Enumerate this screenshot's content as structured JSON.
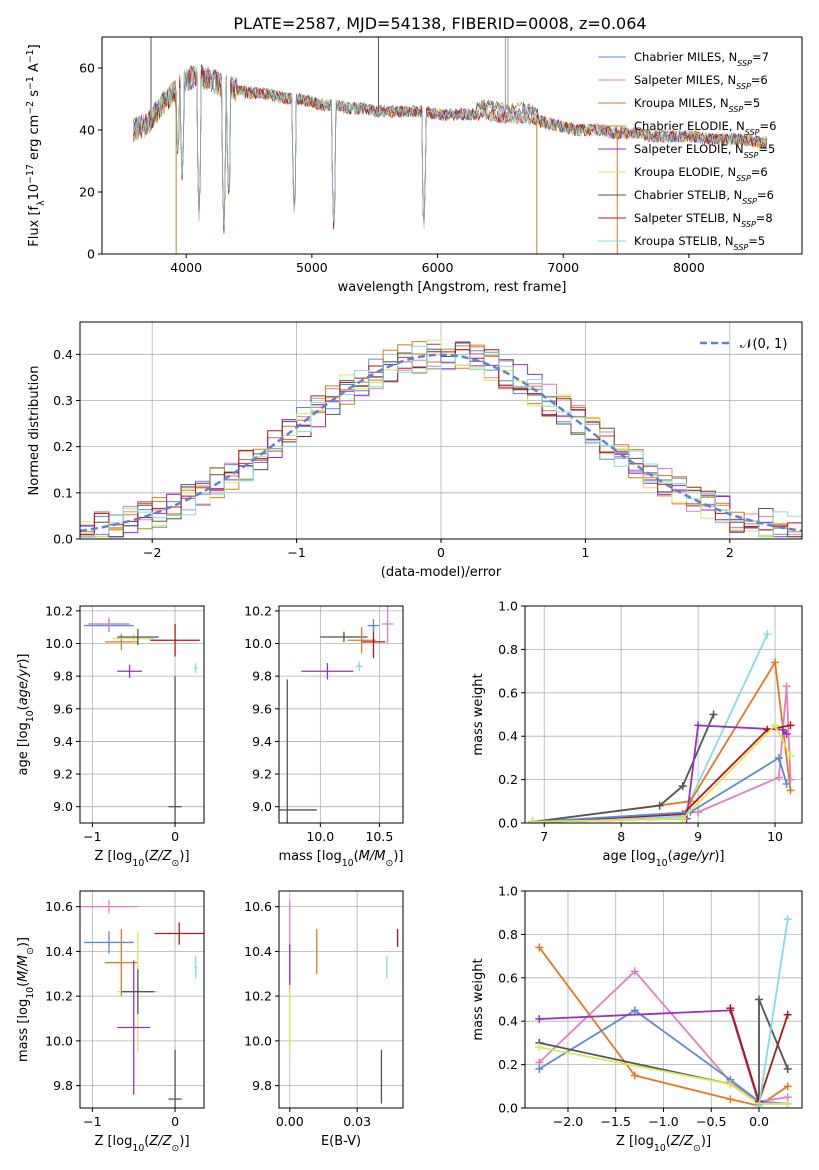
{
  "figure_title": "PLATE=2587, MJD=54138, FIBERID=0008, z=0.064",
  "palette": {
    "Chabrier MILES": "#5b8bd8",
    "Salpeter MILES": "#e27fc0",
    "Kroupa MILES": "#b9891d",
    "Chabrier ELODIE": "#e07a22",
    "Salpeter ELODIE": "#9b30c0",
    "Kroupa ELODIE": "#d6ea57",
    "Chabrier STELIB": "#555555",
    "Salpeter STELIB": "#b01818",
    "Kroupa STELIB": "#86dbe4"
  },
  "chart_data": [
    {
      "id": "spectrum",
      "type": "line",
      "title": "PLATE=2587, MJD=54138, FIBERID=0008, z=0.064",
      "xlabel": "wavelength [Angstrom, rest frame]",
      "ylabel": "Flux [f_λ 10^-17 erg cm^-2 s^-1 A^-1]",
      "xlim": [
        3330,
        8900
      ],
      "ylim": [
        0,
        70
      ],
      "xticks": [
        4000,
        5000,
        6000,
        7000,
        8000
      ],
      "yticks": [
        0,
        20,
        40,
        60
      ],
      "grid": false,
      "legend_position": "right",
      "legend": [
        {
          "label": "Chabrier MILES, N_SSP=7",
          "color": "#5b8bd8"
        },
        {
          "label": "Salpeter MILES, N_SSP=6",
          "color": "#e27fc0"
        },
        {
          "label": "Kroupa MILES, N_SSP=5",
          "color": "#b9891d"
        },
        {
          "label": "Chabrier ELODIE, N_SSP=6",
          "color": "#e07a22"
        },
        {
          "label": "Salpeter ELODIE, N_SSP=5",
          "color": "#9b30c0"
        },
        {
          "label": "Kroupa ELODIE, N_SSP=6",
          "color": "#d6ea57"
        },
        {
          "label": "Chabrier STELIB, N_SSP=6",
          "color": "#555555"
        },
        {
          "label": "Salpeter STELIB, N_SSP=8",
          "color": "#b01818"
        },
        {
          "label": "Kroupa STELIB, N_SSP=5",
          "color": "#86dbe4"
        }
      ],
      "continuum": [
        [
          3580,
          40
        ],
        [
          3700,
          42
        ],
        [
          3800,
          48
        ],
        [
          3900,
          52
        ],
        [
          4000,
          56
        ],
        [
          4100,
          58
        ],
        [
          4200,
          56
        ],
        [
          4300,
          54
        ],
        [
          4400,
          53
        ],
        [
          4500,
          52
        ],
        [
          4600,
          52
        ],
        [
          4700,
          51
        ],
        [
          4800,
          50
        ],
        [
          4900,
          50
        ],
        [
          5000,
          49
        ],
        [
          5100,
          48
        ],
        [
          5200,
          48
        ],
        [
          5300,
          47
        ],
        [
          5400,
          47
        ],
        [
          5500,
          46
        ],
        [
          5600,
          46
        ],
        [
          5700,
          46
        ],
        [
          5800,
          46
        ],
        [
          5900,
          46
        ],
        [
          6000,
          45
        ],
        [
          6100,
          45
        ],
        [
          6200,
          45
        ],
        [
          6300,
          45
        ],
        [
          6400,
          45
        ],
        [
          6500,
          44
        ],
        [
          6600,
          44
        ],
        [
          6700,
          44
        ],
        [
          6800,
          43
        ],
        [
          6900,
          42
        ],
        [
          7000,
          41
        ],
        [
          7100,
          40
        ],
        [
          7200,
          40
        ],
        [
          7300,
          40
        ],
        [
          7400,
          39
        ],
        [
          7500,
          39
        ],
        [
          7600,
          39
        ],
        [
          7700,
          38
        ],
        [
          7800,
          38
        ],
        [
          7900,
          38
        ],
        [
          8000,
          38
        ],
        [
          8200,
          37
        ],
        [
          8400,
          37
        ],
        [
          8600,
          36
        ]
      ],
      "absorption_lines": [
        [
          3934,
          28
        ],
        [
          3969,
          22
        ],
        [
          4102,
          12
        ],
        [
          4300,
          8
        ],
        [
          4340,
          14
        ],
        [
          4861,
          10
        ],
        [
          5175,
          6
        ],
        [
          5890,
          5
        ]
      ],
      "spikes": [
        [
          3920,
          0,
          "#b9891d"
        ],
        [
          6790,
          0,
          "#b9891d"
        ],
        [
          7430,
          0,
          "#e07a22"
        ],
        [
          5530,
          70,
          "#555555"
        ],
        [
          6540,
          70,
          "#999999"
        ],
        [
          6560,
          70,
          "#999999"
        ],
        [
          3720,
          70,
          "#555555"
        ]
      ]
    },
    {
      "id": "residuals",
      "type": "histogram",
      "xlabel": "(data-model)/error",
      "ylabel": "Normed distribution",
      "xlim": [
        -2.5,
        2.5
      ],
      "ylim": [
        0,
        0.47
      ],
      "xticks": [
        -2,
        -1,
        0,
        1,
        2
      ],
      "yticks": [
        0.0,
        0.1,
        0.2,
        0.3,
        0.4
      ],
      "grid": true,
      "legend": [
        {
          "label": "𝒩(0, 1)",
          "color": "#6080d0",
          "style": "dashed"
        }
      ],
      "legend_position": "top-right",
      "bin_width": 0.1,
      "bin_start": -2.5
    },
    {
      "id": "age-vs-Z",
      "type": "errorbar",
      "xlabel": "Z [log10(Z/Z⊙)]",
      "ylabel": "age [log10(age/yr)]",
      "xlim": [
        -1.15,
        0.35
      ],
      "ylim": [
        8.9,
        10.23
      ],
      "xticks": [
        -1,
        0
      ],
      "yticks": [
        9.0,
        9.2,
        9.4,
        9.6,
        9.8,
        10.0,
        10.2
      ],
      "grid": true,
      "points": [
        {
          "color": "#5b8bd8",
          "x": -0.8,
          "y": 10.11,
          "xerr": 0.3,
          "yerr": 0.04
        },
        {
          "color": "#e27fc0",
          "x": -0.8,
          "y": 10.12,
          "xerr": 0.25,
          "yerr": 0.04
        },
        {
          "color": "#e07a22",
          "x": -0.65,
          "y": 10.01,
          "xerr": 0.2,
          "yerr": 0.05
        },
        {
          "color": "#9b30c0",
          "x": -0.55,
          "y": 9.83,
          "xerr": 0.15,
          "yerr": 0.04
        },
        {
          "color": "#d6ea57",
          "x": -0.5,
          "y": 10.03,
          "xerr": 0.25,
          "yerr": 0.03
        },
        {
          "color": "#555555",
          "x": -0.45,
          "y": 10.04,
          "xerr": 0.25,
          "yerr": 0.05
        },
        {
          "color": "#b01818",
          "x": 0.0,
          "y": 10.02,
          "xerr": 0.3,
          "yerr": 0.1
        },
        {
          "color": "#86dbe4",
          "x": 0.25,
          "y": 9.85,
          "xerr": 0.02,
          "yerr": 0.03
        },
        {
          "color": "#555555",
          "x": 0.0,
          "y": 9.0,
          "xerr": 0.08,
          "yerr": 0.8
        }
      ]
    },
    {
      "id": "age-vs-mass",
      "type": "errorbar",
      "xlabel": "mass [log10(M/M⊙)]",
      "ylabel": "",
      "xlim": [
        9.65,
        10.7
      ],
      "ylim": [
        8.9,
        10.23
      ],
      "xticks": [
        10.0,
        10.5
      ],
      "yticks": [
        9.0,
        9.2,
        9.4,
        9.6,
        9.8,
        10.0,
        10.2
      ],
      "grid": true,
      "points": [
        {
          "color": "#555555",
          "x": 9.72,
          "y": 8.98,
          "xerr": 0.0,
          "yerr": 0.8
        },
        {
          "color": "#555555",
          "x": 9.72,
          "y": 8.98,
          "xerr": 0.25,
          "yerr": 0.0
        },
        {
          "color": "#9b30c0",
          "x": 10.06,
          "y": 9.83,
          "xerr": 0.22,
          "yerr": 0.05
        },
        {
          "color": "#d6ea57",
          "x": 10.2,
          "y": 10.04,
          "xerr": 0.15,
          "yerr": 0.04
        },
        {
          "color": "#555555",
          "x": 10.2,
          "y": 10.04,
          "xerr": 0.2,
          "yerr": 0.03
        },
        {
          "color": "#86dbe4",
          "x": 10.33,
          "y": 9.86,
          "xerr": 0.03,
          "yerr": 0.03
        },
        {
          "color": "#e07a22",
          "x": 10.35,
          "y": 10.02,
          "xerr": 0.12,
          "yerr": 0.08
        },
        {
          "color": "#b01818",
          "x": 10.45,
          "y": 10.01,
          "xerr": 0.1,
          "yerr": 0.1
        },
        {
          "color": "#5b8bd8",
          "x": 10.45,
          "y": 10.11,
          "xerr": 0.05,
          "yerr": 0.04
        },
        {
          "color": "#e27fc0",
          "x": 10.57,
          "y": 10.12,
          "xerr": 0.05,
          "yerr": 0.12
        }
      ]
    },
    {
      "id": "weight-vs-age",
      "type": "line",
      "xlabel": "age [log10(age/yr)]",
      "ylabel": "mass weight",
      "xlim": [
        6.75,
        10.35
      ],
      "ylim": [
        0,
        1.0
      ],
      "xticks": [
        7,
        8,
        9,
        10
      ],
      "yticks": [
        0.0,
        0.2,
        0.4,
        0.6,
        0.8,
        1.0
      ],
      "grid": true,
      "series": [
        {
          "color": "#86dbe4",
          "x": [
            6.85,
            8.8,
            9.9
          ],
          "y": [
            0.005,
            0.03,
            0.87
          ]
        },
        {
          "color": "#e07a22",
          "x": [
            6.85,
            8.9,
            10.0,
            10.2
          ],
          "y": [
            0.005,
            0.1,
            0.74,
            0.15
          ]
        },
        {
          "color": "#e27fc0",
          "x": [
            6.85,
            9.0,
            10.05,
            10.15,
            10.2
          ],
          "y": [
            0.005,
            0.05,
            0.21,
            0.63,
            0.2
          ]
        },
        {
          "color": "#555555",
          "x": [
            6.85,
            8.5,
            8.8,
            9.2
          ],
          "y": [
            0.005,
            0.08,
            0.17,
            0.5
          ]
        },
        {
          "color": "#9b30c0",
          "x": [
            6.85,
            8.85,
            9.0,
            10.1,
            10.15
          ],
          "y": [
            0.005,
            0.02,
            0.45,
            0.43,
            0.41
          ]
        },
        {
          "color": "#b01818",
          "x": [
            6.85,
            8.8,
            9.9,
            10.2
          ],
          "y": [
            0.005,
            0.04,
            0.43,
            0.45
          ]
        },
        {
          "color": "#5b8bd8",
          "x": [
            6.85,
            8.9,
            10.05,
            10.15
          ],
          "y": [
            0.005,
            0.05,
            0.3,
            0.18
          ]
        },
        {
          "color": "#d6ea57",
          "x": [
            6.85,
            8.8,
            10.0,
            10.2
          ],
          "y": [
            0.005,
            0.02,
            0.45,
            0.31
          ]
        }
      ]
    },
    {
      "id": "mass-vs-Z",
      "type": "errorbar",
      "xlabel": "Z [log10(Z/Z⊙)]",
      "ylabel": "mass [log10(M/M⊙)]",
      "xlim": [
        -1.15,
        0.35
      ],
      "ylim": [
        9.7,
        10.67
      ],
      "xticks": [
        -1,
        0
      ],
      "yticks": [
        9.8,
        10.0,
        10.2,
        10.4,
        10.6
      ],
      "grid": true,
      "points": [
        {
          "color": "#e27fc0",
          "x": -0.8,
          "y": 10.6,
          "xerr": 0.35,
          "yerr": 0.03
        },
        {
          "color": "#5b8bd8",
          "x": -0.8,
          "y": 10.44,
          "xerr": 0.3,
          "yerr": 0.05
        },
        {
          "color": "#e07a22",
          "x": -0.65,
          "y": 10.35,
          "xerr": 0.2,
          "yerr": 0.15
        },
        {
          "color": "#b01818",
          "x": 0.05,
          "y": 10.48,
          "xerr": 0.3,
          "yerr": 0.05
        },
        {
          "color": "#86dbe4",
          "x": 0.25,
          "y": 10.33,
          "xerr": 0.02,
          "yerr": 0.05
        },
        {
          "color": "#d6ea57",
          "x": -0.45,
          "y": 10.22,
          "xerr": 0.25,
          "yerr": 0.27
        },
        {
          "color": "#555555",
          "x": -0.45,
          "y": 10.22,
          "xerr": 0.2,
          "yerr": 0.1
        },
        {
          "color": "#9b30c0",
          "x": -0.5,
          "y": 10.06,
          "xerr": 0.2,
          "yerr": 0.3
        },
        {
          "color": "#555555",
          "x": 0.0,
          "y": 9.74,
          "xerr": 0.08,
          "yerr": 0.22
        }
      ]
    },
    {
      "id": "mass-vs-EBV",
      "type": "errorbar",
      "xlabel": "E(B-V)",
      "ylabel": "",
      "xlim": [
        -0.004,
        0.042
      ],
      "ylim": [
        9.7,
        10.67
      ],
      "xticks": [
        0.0,
        0.025
      ],
      "yticks": [
        9.8,
        10.0,
        10.2,
        10.4,
        10.6
      ],
      "grid": true,
      "points": [
        {
          "color": "#e27fc0",
          "x": 0.0,
          "y": 10.45,
          "xerr": 0.0,
          "yerr": 0.18
        },
        {
          "color": "#9b30c0",
          "x": 0.0,
          "y": 10.33,
          "xerr": 0.0,
          "yerr": 0.1
        },
        {
          "color": "#d6ea57",
          "x": 0.0,
          "y": 10.1,
          "xerr": 0.0,
          "yerr": 0.15
        },
        {
          "color": "#e07a22",
          "x": 0.01,
          "y": 10.4,
          "xerr": 0.0,
          "yerr": 0.1
        },
        {
          "color": "#555555",
          "x": 0.034,
          "y": 9.84,
          "xerr": 0.0,
          "yerr": 0.12
        },
        {
          "color": "#86dbe4",
          "x": 0.036,
          "y": 10.33,
          "xerr": 0.0,
          "yerr": 0.05
        },
        {
          "color": "#b01818",
          "x": 0.04,
          "y": 10.46,
          "xerr": 0.0,
          "yerr": 0.04
        }
      ]
    },
    {
      "id": "weight-vs-Z",
      "type": "line",
      "xlabel": "Z [log10(Z/Z⊙)]",
      "ylabel": "mass weight",
      "xlim": [
        -2.45,
        0.45
      ],
      "ylim": [
        0,
        1.0
      ],
      "xticks": [
        -2.0,
        -1.5,
        -1.0,
        -0.5,
        0.0
      ],
      "yticks": [
        0.0,
        0.2,
        0.4,
        0.6,
        0.8,
        1.0
      ],
      "grid": true,
      "series": [
        {
          "color": "#e07a22",
          "x": [
            -2.3,
            -1.3,
            -0.3,
            0.0,
            0.3
          ],
          "y": [
            0.74,
            0.15,
            0.04,
            0.01,
            0.1
          ]
        },
        {
          "color": "#e27fc0",
          "x": [
            -2.3,
            -1.3,
            -0.3,
            0.0,
            0.3
          ],
          "y": [
            0.21,
            0.63,
            0.12,
            0.03,
            0.05
          ]
        },
        {
          "color": "#5b8bd8",
          "x": [
            -2.3,
            -1.3,
            -0.3,
            0.0,
            0.3
          ],
          "y": [
            0.18,
            0.45,
            0.13,
            0.03,
            0.02
          ]
        },
        {
          "color": "#9b30c0",
          "x": [
            -2.3,
            -0.3,
            0.0,
            0.3
          ],
          "y": [
            0.41,
            0.45,
            0.02,
            0.02
          ]
        },
        {
          "color": "#555555",
          "x": [
            -2.3,
            -0.3,
            0.0,
            0.0,
            0.3
          ],
          "y": [
            0.3,
            0.11,
            0.02,
            0.5,
            0.18
          ]
        },
        {
          "color": "#d6ea57",
          "x": [
            -2.3,
            -0.3,
            0.0,
            0.3
          ],
          "y": [
            0.28,
            0.11,
            0.02,
            0.02
          ]
        },
        {
          "color": "#b01818",
          "x": [
            -0.3,
            0.0,
            0.3
          ],
          "y": [
            0.46,
            0.03,
            0.43
          ]
        },
        {
          "color": "#86dbe4",
          "x": [
            0.0,
            0.3
          ],
          "y": [
            0.01,
            0.87
          ]
        }
      ]
    }
  ]
}
